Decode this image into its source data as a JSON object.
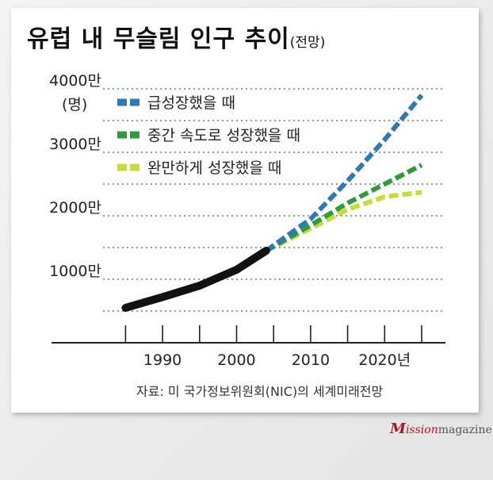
{
  "title": "유럽 내 무슬림 인구 추이",
  "title_sub": "(전망)",
  "source": "자료: 미 국가정보위원회(NIC)의 세계미래전망",
  "brand": {
    "m": "M",
    "ission": "ission",
    "magazine": "magazine"
  },
  "chart_data": {
    "type": "line",
    "ylabel": "(명)",
    "x_ticks": [
      "1990",
      "2000",
      "2010",
      "2020년"
    ],
    "x_tick_values": [
      1990,
      2000,
      2010,
      2020
    ],
    "y_ticks": [
      "1000만",
      "2000만",
      "3000만",
      "4000만"
    ],
    "y_tick_values": [
      10000000,
      20000000,
      30000000,
      40000000
    ],
    "xlim": [
      1975,
      2028
    ],
    "ylim": [
      0,
      40000000
    ],
    "grid": "horizontal-dotted",
    "legend_position": "top-left",
    "historical": {
      "color": "#111111",
      "points": [
        [
          1985,
          5500000
        ],
        [
          1990,
          7200000
        ],
        [
          1995,
          9000000
        ],
        [
          2000,
          11500000
        ],
        [
          2004,
          14500000
        ]
      ]
    },
    "series": [
      {
        "name": "급성장했을 때",
        "color": "#2e78b6",
        "points": [
          [
            2004,
            14500000
          ],
          [
            2010,
            19500000
          ],
          [
            2015,
            25500000
          ],
          [
            2020,
            32000000
          ],
          [
            2025,
            39000000
          ]
        ]
      },
      {
        "name": "중간 속도로 성장했을 때",
        "color": "#2f9b3c",
        "points": [
          [
            2004,
            14500000
          ],
          [
            2010,
            18500000
          ],
          [
            2015,
            22000000
          ],
          [
            2020,
            25000000
          ],
          [
            2025,
            28000000
          ]
        ]
      },
      {
        "name": "완만하게 성장했을 때",
        "color": "#c6dc3a",
        "points": [
          [
            2004,
            14500000
          ],
          [
            2010,
            18000000
          ],
          [
            2015,
            21000000
          ],
          [
            2020,
            23000000
          ],
          [
            2025,
            23700000
          ]
        ]
      }
    ]
  }
}
